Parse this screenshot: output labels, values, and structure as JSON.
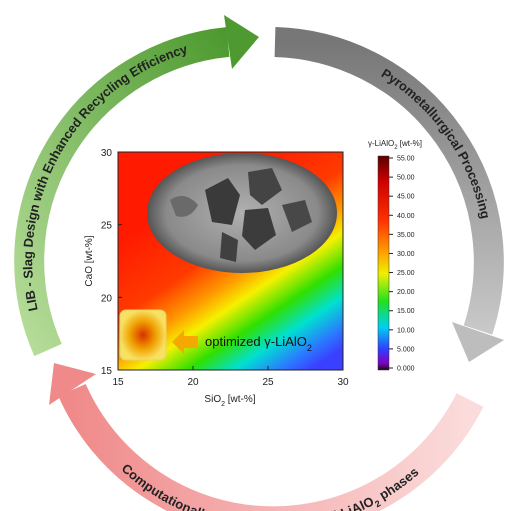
{
  "cycle": {
    "design": "LIB - Slag Design with Enhanced Recycling Efficiency",
    "processing": "Pyrometallurgical Processing",
    "computation": {
      "text": "Computationally Engineered Artificial LiAlO",
      "sub": "2",
      "tail": " phases"
    }
  },
  "plot": {
    "x_label": {
      "text": "SiO",
      "sub": "2",
      "tail": " [wt-%]"
    },
    "y_label": "CaO [wt-%]",
    "x_ticks": [
      "15",
      "20",
      "25",
      "30"
    ],
    "y_ticks": [
      "15",
      "20",
      "25",
      "30"
    ],
    "annotation": {
      "text": "optimized γ-LiAlO",
      "sub": "2"
    },
    "colorbar": {
      "title": {
        "text": "γ-LiAlO",
        "sub": "2",
        "tail": " [wt-%]"
      },
      "ticks": [
        "55.00",
        "50.00",
        "45.00",
        "40.00",
        "35.00",
        "30.00",
        "25.00",
        "20.00",
        "15.00",
        "10.00",
        "5.000",
        "0.000"
      ]
    }
  }
}
